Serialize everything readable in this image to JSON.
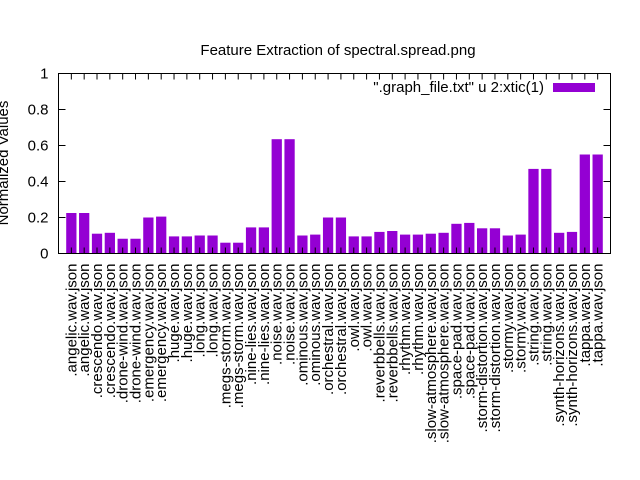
{
  "chart_data": {
    "type": "bar",
    "title": "Feature Extraction of spectral.spread.png",
    "xlabel": "",
    "ylabel": "Normalized Values",
    "ylim": [
      0,
      1
    ],
    "yticks": [
      "0",
      "0.2",
      "0.4",
      "0.6",
      "0.8",
      "1"
    ],
    "legend_position": "top-right",
    "grid": false,
    "bar_color": "#9400d3",
    "series": [
      {
        "name": "\".graph_file.txt\" u 2:xtic(1)",
        "values": [
          0.225,
          0.225,
          0.11,
          0.115,
          0.082,
          0.082,
          0.2,
          0.205,
          0.095,
          0.095,
          0.1,
          0.1,
          0.06,
          0.06,
          0.145,
          0.145,
          0.635,
          0.635,
          0.1,
          0.105,
          0.2,
          0.2,
          0.095,
          0.095,
          0.12,
          0.125,
          0.105,
          0.105,
          0.11,
          0.115,
          0.165,
          0.17,
          0.14,
          0.14,
          0.1,
          0.105,
          0.47,
          0.47,
          0.115,
          0.12,
          0.55,
          0.55
        ]
      }
    ],
    "categories": [
      ".angelic.wav.json",
      ".angelic.wav.json",
      ".crescendo.wav.json",
      ".crescendo.wav.json",
      ".drone-wind.wav.json",
      ".drone-wind.wav.json",
      ".emergency.wav.json",
      ".emergency.wav.json",
      ".huge.wav.json",
      ".huge.wav.json",
      ".long.wav.json",
      ".long.wav.json",
      ".megs-storm.wav.json",
      ".megs-storm.wav.json",
      ".nine-lies.wav.json",
      ".nine-lies.wav.json",
      ".noise.wav.json",
      ".noise.wav.json",
      ".ominous.wav.json",
      ".ominous.wav.json",
      ".orchestral.wav.json",
      ".orchestral.wav.json",
      ".owl.wav.json",
      ".owl.wav.json",
      ".reverbbells.wav.json",
      ".reverbbells.wav.json",
      ".rhythm.wav.json",
      ".rhythm.wav.json",
      ".slow-atmosphere.wav.json",
      ".slow-atmosphere.wav.json",
      ".space-pad.wav.json",
      ".space-pad.wav.json",
      ".storm-distortion.wav.json",
      ".storm-distortion.wav.json",
      ".stormy.wav.json",
      ".stormy.wav.json",
      ".string.wav.json",
      ".string.wav.json",
      ".synth-horizons.wav.json",
      ".synth-horizons.wav.json",
      ".tappa.wav.json",
      ".tappa.wav.json"
    ]
  }
}
